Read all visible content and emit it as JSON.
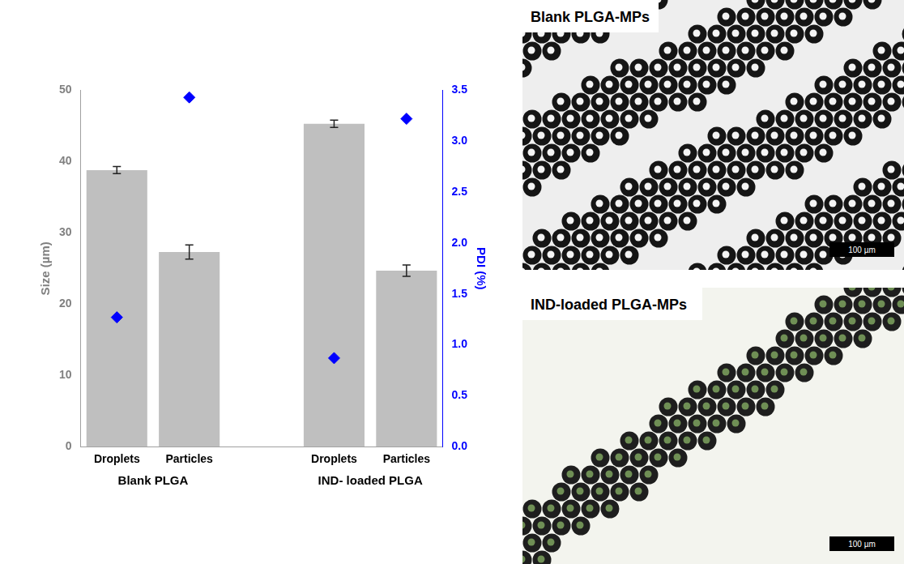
{
  "chart_data": {
    "type": "bar",
    "categories": [
      "Droplets",
      "Particles",
      null,
      "Droplets",
      "Particles"
    ],
    "groups": [
      "Blank PLGA",
      "IND- loaded PLGA"
    ],
    "y_label": "Size (µm)",
    "y2_label": "PDI (%)",
    "ylim": [
      0,
      50
    ],
    "yticks": [
      0,
      10,
      20,
      30,
      40,
      50
    ],
    "y2lim": [
      0,
      3.5
    ],
    "y2ticks": [
      {
        "value": 0,
        "label": "0.0"
      },
      0.5,
      {
        "value": 1,
        "label": "1.0"
      },
      1.5,
      {
        "value": 2,
        "label": "2.0"
      },
      2.5,
      {
        "value": 3,
        "label": "3.0"
      },
      3.5
    ],
    "grid": false,
    "series": [
      {
        "type": "bar",
        "color": "#bfbfbf",
        "values": [
          38.8,
          27.3,
          null,
          45.3,
          24.7
        ],
        "errors": [
          0.5,
          1.0,
          null,
          0.5,
          0.8
        ]
      },
      {
        "type": "scatter",
        "marker": "diamond",
        "color": "#0000ff",
        "axis": "y2",
        "values": [
          1.27,
          3.43,
          null,
          0.87,
          3.22
        ]
      }
    ]
  },
  "images": [
    {
      "title": "Blank PLGA-MPs",
      "scale_bar": "100 µm"
    },
    {
      "title": "IND-loaded PLGA-MPs",
      "scale_bar": "100 µm"
    }
  ]
}
